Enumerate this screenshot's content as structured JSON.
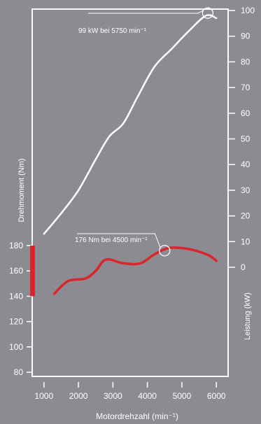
{
  "chart_data": {
    "type": "line",
    "xlabel": "Motordrehzahl (min⁻¹)",
    "y_left_label": "Drehmoment (Nm)",
    "y_right_label": "Leistung (kW)",
    "x_ticks": [
      1000,
      2000,
      3000,
      4000,
      5000,
      6000
    ],
    "y_left_ticks": [
      80,
      100,
      120,
      140,
      160,
      180
    ],
    "y_right_ticks": [
      0,
      10,
      20,
      30,
      40,
      50,
      60,
      70,
      80,
      90,
      100
    ],
    "xlim": [
      700,
      6300
    ],
    "y_left_lim": [
      80,
      180
    ],
    "y_right_lim": [
      0,
      100
    ],
    "grid": false,
    "series": [
      {
        "key": "power",
        "axis": "right",
        "color": "#ffffff",
        "x": [
          1000,
          1500,
          2000,
          2500,
          2900,
          3300,
          3700,
          4200,
          4700,
          5200,
          5700,
          6000
        ],
        "y": [
          13,
          21,
          30,
          42,
          51,
          56,
          66,
          78,
          85,
          92,
          98,
          97
        ]
      },
      {
        "key": "torque",
        "axis": "left",
        "color": "#d8262b",
        "x": [
          1300,
          1700,
          2200,
          2500,
          2800,
          3300,
          3800,
          4200,
          4600,
          5000,
          5400,
          5800,
          6000
        ],
        "y": [
          142,
          152,
          154,
          160,
          169,
          166,
          166,
          173,
          178,
          178,
          176,
          172,
          168
        ]
      }
    ],
    "annotations": [
      {
        "text": "99 kW bei 5750 min⁻¹",
        "series": "power",
        "x": 5750,
        "y": 99
      },
      {
        "text": "176 Nm bei 4500 min⁻¹",
        "series": "torque",
        "x": 4500,
        "y": 176
      }
    ],
    "left_range_marker": {
      "color": "#d8262b",
      "from": 140,
      "to": 180
    }
  }
}
